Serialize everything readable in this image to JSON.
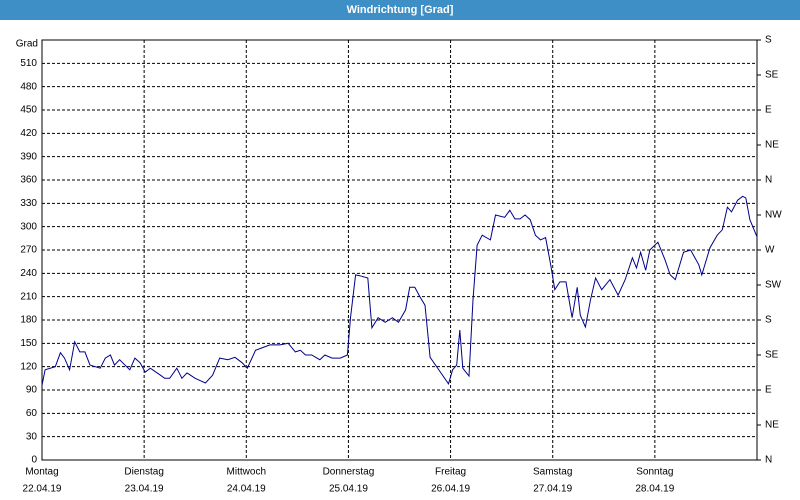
{
  "chart_data": {
    "type": "line",
    "title": "Windrichtung [Grad]",
    "y_label": "Grad",
    "xlim": [
      0,
      7
    ],
    "xticks": [
      {
        "value": 0,
        "label": "Montag",
        "date": "22.04.19"
      },
      {
        "value": 1,
        "label": "Dienstag",
        "date": "23.04.19"
      },
      {
        "value": 2,
        "label": "Mittwoch",
        "date": "24.04.19"
      },
      {
        "value": 3,
        "label": "Donnerstag",
        "date": "25.04.19"
      },
      {
        "value": 4,
        "label": "Freitag",
        "date": "26.04.19"
      },
      {
        "value": 5,
        "label": "Samstag",
        "date": "27.04.19"
      },
      {
        "value": 6,
        "label": "Sonntag",
        "date": "28.04.19"
      }
    ],
    "ylim": [
      0,
      540
    ],
    "yticks": [
      0,
      30,
      60,
      90,
      120,
      150,
      180,
      210,
      240,
      270,
      300,
      330,
      360,
      390,
      420,
      450,
      480,
      510
    ],
    "y2lim": [
      0,
      540
    ],
    "y2ticks": [
      {
        "value": 0,
        "label": "N"
      },
      {
        "value": 45,
        "label": "NE"
      },
      {
        "value": 90,
        "label": "E"
      },
      {
        "value": 135,
        "label": "SE"
      },
      {
        "value": 180,
        "label": "S"
      },
      {
        "value": 225,
        "label": "SW"
      },
      {
        "value": 270,
        "label": "W"
      },
      {
        "value": 315,
        "label": "NW"
      },
      {
        "value": 360,
        "label": "N"
      },
      {
        "value": 405,
        "label": "NE"
      },
      {
        "value": 450,
        "label": "E"
      },
      {
        "value": 495,
        "label": "SE"
      },
      {
        "value": 540,
        "label": "S"
      }
    ],
    "grid": true,
    "x": [
      0,
      0.03,
      0.13,
      0.18,
      0.22,
      0.27,
      0.32,
      0.37,
      0.42,
      0.47,
      0.57,
      0.62,
      0.67,
      0.71,
      0.76,
      0.86,
      0.91,
      0.96,
      1.01,
      1.06,
      1.16,
      1.2,
      1.25,
      1.32,
      1.37,
      1.42,
      1.5,
      1.6,
      1.67,
      1.74,
      1.82,
      1.89,
      1.96,
      2.01,
      2.09,
      2.15,
      2.23,
      2.33,
      2.41,
      2.48,
      2.53,
      2.58,
      2.64,
      2.72,
      2.77,
      2.84,
      2.92,
      2.99,
      3.02,
      3.07,
      3.11,
      3.19,
      3.23,
      3.29,
      3.36,
      3.43,
      3.49,
      3.56,
      3.6,
      3.65,
      3.7,
      3.75,
      3.8,
      3.9,
      3.98,
      4.02,
      4.06,
      4.09,
      4.12,
      4.18,
      4.22,
      4.26,
      4.31,
      4.39,
      4.44,
      4.53,
      4.58,
      4.63,
      4.68,
      4.73,
      4.78,
      4.83,
      4.88,
      4.93,
      4.98,
      5.02,
      5.07,
      5.13,
      5.19,
      5.24,
      5.27,
      5.32,
      5.37,
      5.42,
      5.48,
      5.56,
      5.64,
      5.71,
      5.78,
      5.82,
      5.86,
      5.91,
      5.95,
      6.03,
      6.1,
      6.15,
      6.2,
      6.28,
      6.35,
      6.43,
      6.46,
      6.54,
      6.61,
      6.66,
      6.71,
      6.75,
      6.81,
      6.86,
      6.89,
      6.93,
      7.0
    ],
    "series": [
      {
        "color": "#00008b",
        "values": [
          96,
          116,
          120,
          138,
          131,
          116,
          152,
          139,
          139,
          122,
          118,
          131,
          135,
          122,
          129,
          116,
          131,
          125,
          113,
          118,
          109,
          105,
          105,
          118,
          105,
          112,
          105,
          99,
          109,
          131,
          129,
          132,
          125,
          118,
          141,
          144,
          148,
          148,
          150,
          139,
          141,
          135,
          135,
          129,
          135,
          131,
          131,
          135,
          183,
          238,
          237,
          234,
          170,
          183,
          177,
          183,
          177,
          193,
          222,
          222,
          210,
          199,
          132,
          113,
          98,
          116,
          122,
          167,
          118,
          108,
          206,
          276,
          289,
          283,
          315,
          312,
          321,
          310,
          310,
          315,
          309,
          289,
          283,
          286,
          251,
          219,
          229,
          229,
          183,
          222,
          186,
          171,
          206,
          234,
          219,
          232,
          212,
          232,
          260,
          247,
          267,
          244,
          270,
          280,
          257,
          238,
          232,
          267,
          270,
          251,
          238,
          273,
          289,
          296,
          325,
          319,
          334,
          339,
          337,
          309,
          287
        ]
      }
    ]
  }
}
